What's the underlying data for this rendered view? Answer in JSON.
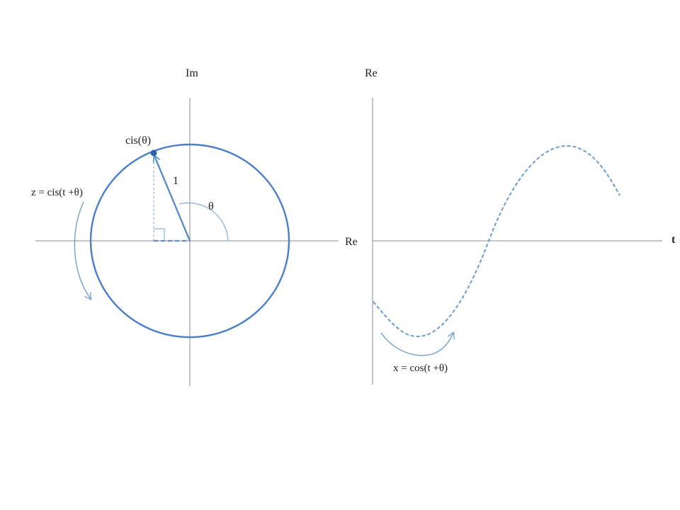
{
  "labels": {
    "left_axis_vertical": "Im",
    "left_axis_horizontal": "Re",
    "point_label": "cis(θ)",
    "radius_label": "1",
    "angle_label": "θ",
    "z_formula": "z = cis(t +θ)",
    "right_axis_vertical": "Re",
    "right_axis_horizontal": "t",
    "x_formula": "x = cos(t +θ)"
  },
  "colors": {
    "circle": "#4a7fc8",
    "vector": "#5c8ec6",
    "dashed": "#6a9bd3",
    "arrow": "#6f9fd0",
    "axis": "#888888",
    "text": "#222222"
  },
  "icons": {
    "right_angle": "right-angle-marker-icon",
    "rotation_arrow": "curved-arrow-icon"
  }
}
